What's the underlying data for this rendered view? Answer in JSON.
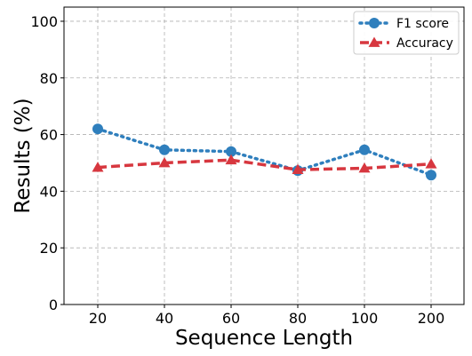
{
  "chart_data": {
    "type": "line",
    "title": "",
    "xlabel": "Sequence Length",
    "ylabel": "Results (%)",
    "categories": [
      "20",
      "40",
      "60",
      "80",
      "100",
      "200"
    ],
    "ylim": [
      0,
      105
    ],
    "yticks": [
      0,
      20,
      40,
      60,
      80,
      100
    ],
    "grid": true,
    "legend_position": "top-right",
    "series": [
      {
        "name": "F1 score",
        "values": [
          62.0,
          54.6,
          54.0,
          47.3,
          54.6,
          45.7
        ],
        "color": "#2f7fbd",
        "marker": "circle",
        "linestyle": "dotted"
      },
      {
        "name": "Accuracy",
        "values": [
          48.4,
          50.0,
          51.0,
          47.6,
          48.1,
          49.6
        ],
        "color": "#d7373f",
        "marker": "triangle",
        "linestyle": "dashed"
      }
    ]
  }
}
